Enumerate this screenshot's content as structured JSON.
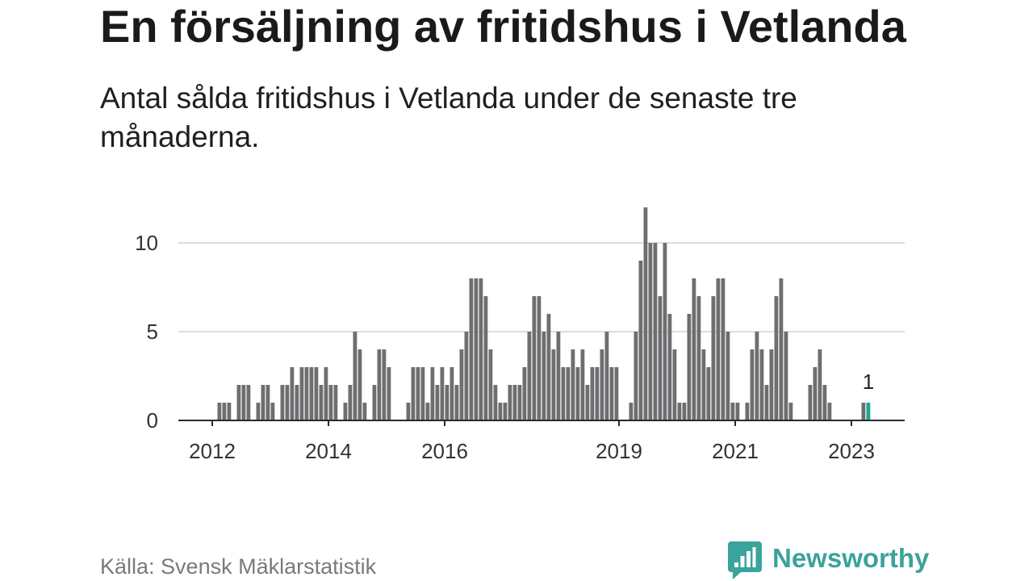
{
  "chart_data": {
    "type": "bar",
    "title": "En försäljning av fritidshus i Vetlanda",
    "subtitle": "Antal sålda fritidshus i Vetlanda under de senaste tre månaderna.",
    "xlabel": "",
    "ylabel": "",
    "x": [
      "2012-01",
      "2012-02",
      "2012-03",
      "2012-04",
      "2012-05",
      "2012-06",
      "2012-07",
      "2012-08",
      "2012-09",
      "2012-10",
      "2012-11",
      "2012-12",
      "2013-01",
      "2013-02",
      "2013-03",
      "2013-04",
      "2013-05",
      "2013-06",
      "2013-07",
      "2013-08",
      "2013-09",
      "2013-10",
      "2013-11",
      "2013-12",
      "2014-01",
      "2014-02",
      "2014-03",
      "2014-04",
      "2014-05",
      "2014-06",
      "2014-07",
      "2014-08",
      "2014-09",
      "2014-10",
      "2014-11",
      "2014-12",
      "2015-01",
      "2015-02",
      "2015-03",
      "2015-04",
      "2015-05",
      "2015-06",
      "2015-07",
      "2015-08",
      "2015-09",
      "2015-10",
      "2015-11",
      "2015-12",
      "2016-01",
      "2016-02",
      "2016-03",
      "2016-04",
      "2016-05",
      "2016-06",
      "2016-07",
      "2016-08",
      "2016-09",
      "2016-10",
      "2016-11",
      "2016-12",
      "2017-01",
      "2017-02",
      "2017-03",
      "2017-04",
      "2017-05",
      "2017-06",
      "2017-07",
      "2017-08",
      "2017-09",
      "2017-10",
      "2017-11",
      "2017-12",
      "2018-01",
      "2018-02",
      "2018-03",
      "2018-04",
      "2018-05",
      "2018-06",
      "2018-07",
      "2018-08",
      "2018-09",
      "2018-10",
      "2018-11",
      "2018-12",
      "2019-01",
      "2019-02",
      "2019-03",
      "2019-04",
      "2019-05",
      "2019-06",
      "2019-07",
      "2019-08",
      "2019-09",
      "2019-10",
      "2019-11",
      "2019-12",
      "2020-01",
      "2020-02",
      "2020-03",
      "2020-04",
      "2020-05",
      "2020-06",
      "2020-07",
      "2020-08",
      "2020-09",
      "2020-10",
      "2020-11",
      "2020-12",
      "2021-01",
      "2021-02",
      "2021-03",
      "2021-04",
      "2021-05",
      "2021-06",
      "2021-07",
      "2021-08",
      "2021-09",
      "2021-10",
      "2021-11",
      "2021-12",
      "2022-01",
      "2022-02",
      "2022-03",
      "2022-04",
      "2022-05",
      "2022-06",
      "2022-07",
      "2022-08",
      "2022-09",
      "2022-10",
      "2022-11",
      "2022-12",
      "2023-01",
      "2023-02",
      "2023-03",
      "2023-04"
    ],
    "values": [
      0,
      1,
      1,
      1,
      0,
      2,
      2,
      2,
      0,
      1,
      2,
      2,
      1,
      0,
      2,
      2,
      3,
      2,
      3,
      3,
      3,
      3,
      2,
      3,
      2,
      2,
      0,
      1,
      2,
      5,
      4,
      1,
      0,
      2,
      4,
      4,
      3,
      0,
      0,
      0,
      1,
      3,
      3,
      3,
      1,
      3,
      2,
      3,
      2,
      3,
      2,
      4,
      5,
      8,
      8,
      8,
      7,
      4,
      2,
      1,
      1,
      2,
      2,
      2,
      3,
      5,
      7,
      7,
      5,
      6,
      4,
      5,
      3,
      3,
      4,
      3,
      4,
      2,
      3,
      3,
      4,
      5,
      3,
      3,
      0,
      0,
      1,
      5,
      9,
      12,
      10,
      10,
      7,
      10,
      6,
      4,
      1,
      1,
      6,
      8,
      7,
      4,
      3,
      7,
      8,
      8,
      5,
      1,
      1,
      0,
      1,
      4,
      5,
      4,
      2,
      4,
      7,
      8,
      5,
      1,
      0,
      0,
      0,
      2,
      3,
      4,
      2,
      1,
      0,
      0,
      0,
      0,
      0,
      0,
      1,
      1
    ],
    "xlim": [
      "2011-06",
      "2023-12"
    ],
    "ylim": [
      0,
      12
    ],
    "y_ticks": [
      0,
      5,
      10
    ],
    "x_ticks": [
      {
        "x": "2012-01",
        "label": "2012"
      },
      {
        "x": "2014-01",
        "label": "2014"
      },
      {
        "x": "2016-01",
        "label": "2016"
      },
      {
        "x": "2019-01",
        "label": "2019"
      },
      {
        "x": "2021-01",
        "label": "2021"
      },
      {
        "x": "2023-01",
        "label": "2023"
      }
    ],
    "grid": true,
    "legend": "none",
    "highlight": {
      "x": "2023-04",
      "label": "1"
    },
    "colors": {
      "bar": "#6e6e70",
      "highlight": "#1fa394",
      "grid": "#dddddd",
      "axis": "#2b2b2b"
    }
  },
  "footer": {
    "source": "Källa: Svensk Mäklarstatistik"
  },
  "branding": {
    "logo_text": "Newsworthy",
    "logo_icon": "newsworthy-logo-icon",
    "color": "#3aa39b"
  }
}
